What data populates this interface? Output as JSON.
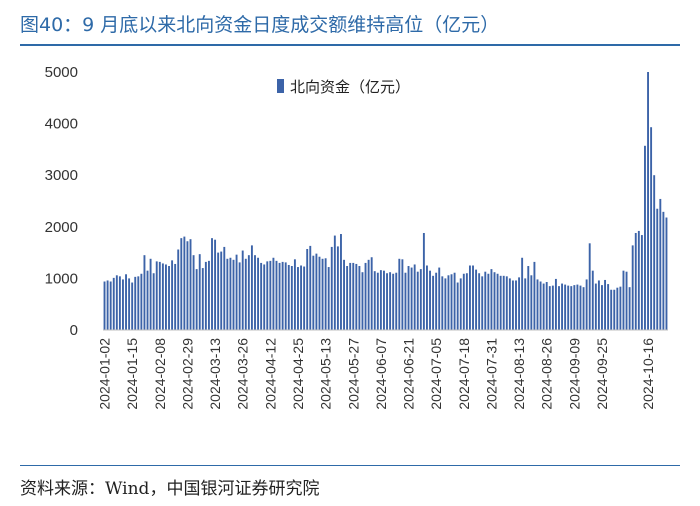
{
  "header": {
    "title": "图40：9 月底以来北向资金日度成交额维持高位（亿元）"
  },
  "footer": {
    "source": "资料来源：Wind，中国银河证券研究院"
  },
  "chart_data": {
    "type": "bar",
    "title": "",
    "xlabel": "",
    "ylabel": "",
    "ylim": [
      0,
      5000
    ],
    "yticks": [
      0,
      1000,
      2000,
      3000,
      4000,
      5000
    ],
    "legend": {
      "label": "北向资金（亿元）",
      "position": "top"
    },
    "grid": false,
    "bar_color": "#3c63a8",
    "x_tick_labels": [
      "2024-01-02",
      "2024-01-15",
      "2024-02-08",
      "2024-02-29",
      "2024-03-13",
      "2024-03-26",
      "2024-04-12",
      "2024-04-25",
      "2024-05-13",
      "2024-05-27",
      "2024-06-07",
      "2024-06-21",
      "2024-07-05",
      "2024-07-18",
      "2024-07-31",
      "2024-08-13",
      "2024-08-26",
      "2024-09-09",
      "2024-09-25",
      "2024-10-16"
    ],
    "x_tick_index": [
      0,
      9,
      18,
      27,
      36,
      45,
      54,
      63,
      72,
      81,
      90,
      99,
      108,
      117,
      126,
      135,
      144,
      153,
      162,
      177
    ],
    "series": [
      {
        "name": "北向资金（亿元）",
        "values": [
          940,
          960,
          940,
          1010,
          1060,
          1040,
          980,
          1080,
          1000,
          920,
          1030,
          1040,
          1090,
          1450,
          1150,
          1380,
          1100,
          1330,
          1320,
          1290,
          1270,
          1240,
          1350,
          1280,
          1560,
          1780,
          1810,
          1720,
          1760,
          1450,
          1180,
          1470,
          1200,
          1320,
          1340,
          1780,
          1750,
          1500,
          1520,
          1610,
          1380,
          1400,
          1360,
          1460,
          1310,
          1540,
          1380,
          1450,
          1640,
          1450,
          1400,
          1300,
          1270,
          1330,
          1340,
          1400,
          1340,
          1300,
          1320,
          1310,
          1260,
          1240,
          1370,
          1220,
          1250,
          1230,
          1570,
          1630,
          1440,
          1480,
          1420,
          1380,
          1390,
          1220,
          1610,
          1830,
          1620,
          1860,
          1360,
          1240,
          1300,
          1300,
          1280,
          1240,
          1120,
          1300,
          1360,
          1410,
          1140,
          1110,
          1160,
          1150,
          1100,
          1120,
          1090,
          1110,
          1380,
          1370,
          1110,
          1240,
          1210,
          1270,
          1130,
          1180,
          1880,
          1250,
          1150,
          1050,
          1110,
          1210,
          1040,
          1000,
          1060,
          1080,
          1110,
          920,
          1000,
          1090,
          1100,
          1250,
          1250,
          1170,
          1100,
          1040,
          1130,
          1090,
          1180,
          1120,
          1090,
          1050,
          1050,
          1040,
          1000,
          960,
          960,
          1020,
          1400,
          1000,
          1240,
          1060,
          1320,
          980,
          940,
          900,
          930,
          850,
          860,
          990,
          850,
          900,
          880,
          860,
          850,
          870,
          880,
          860,
          830,
          980,
          1680,
          1150,
          900,
          960,
          870,
          970,
          890,
          780,
          780,
          820,
          840,
          1150,
          1130,
          830,
          1640,
          1880,
          1920,
          1840,
          3570,
          5000,
          3930,
          3000,
          2350,
          2540,
          2290,
          2180
        ]
      }
    ]
  }
}
